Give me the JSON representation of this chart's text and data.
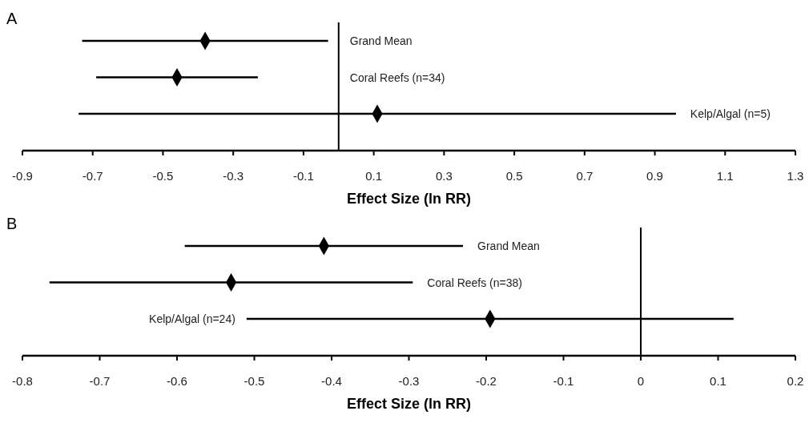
{
  "chart_data": [
    {
      "type": "scatter",
      "title": "A",
      "orientation": "horizontal",
      "categories": [
        "Grand Mean",
        "Coral Reefs (n=34)",
        "Kelp/Algal (n=5)"
      ],
      "values": [
        -0.38,
        -0.46,
        0.11
      ],
      "errors": [
        0.35,
        0.23,
        0.85
      ],
      "color": "#000000",
      "marker": "diamond",
      "xlim": [
        -0.9,
        1.3
      ],
      "xticks": [
        -0.9,
        -0.7,
        -0.5,
        -0.3,
        -0.1,
        0.1,
        0.3,
        0.5,
        0.7,
        0.9,
        1.1,
        1.3
      ],
      "xlabel": "Effect Size (ln RR)",
      "ref_lines": [
        {
          "axis": "x",
          "value": 0
        }
      ],
      "tick_labels": "x"
    },
    {
      "type": "scatter",
      "title": "B",
      "orientation": "horizontal",
      "categories": [
        "Grand Mean",
        "Coral Reefs (n=38)",
        "Kelp/Algal (n=24)"
      ],
      "values": [
        -0.41,
        -0.53,
        -0.195
      ],
      "errors": [
        0.18,
        0.235,
        0.315
      ],
      "color": "#000000",
      "marker": "diamond",
      "xlim": [
        -0.8,
        0.2
      ],
      "xticks": [
        -0.8,
        -0.7,
        -0.6,
        -0.5,
        -0.4,
        -0.3,
        -0.2,
        -0.1,
        0,
        0.1,
        0.2
      ],
      "xlabel": "Effect Size (ln RR)",
      "ref_lines": [
        {
          "axis": "x",
          "value": 0
        }
      ],
      "tick_labels": "x"
    }
  ]
}
